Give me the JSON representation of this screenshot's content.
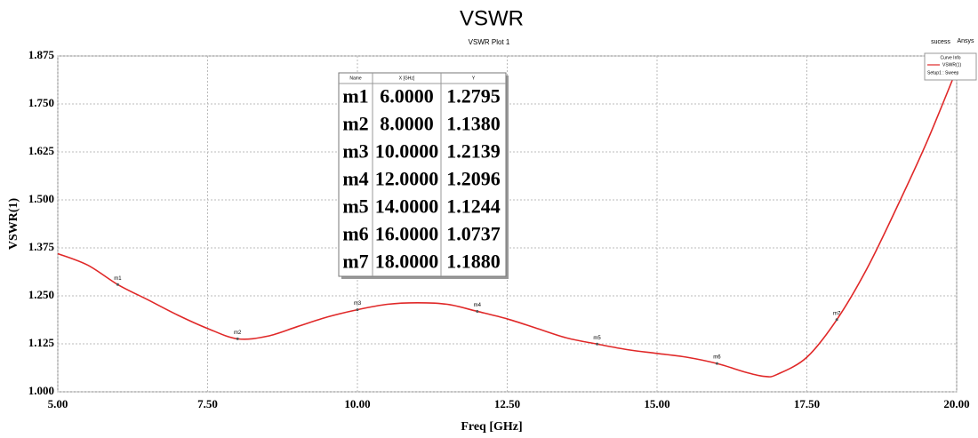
{
  "chart_data": {
    "type": "line",
    "title": "VSWR",
    "subtitle": "VSWR Plot 1",
    "corner_labels": [
      "sucess",
      "Ansys"
    ],
    "x_label": "Freq [GHz]",
    "y_label": "VSWR(1)",
    "x": [
      5.0,
      5.5,
      6.0,
      6.5,
      7.0,
      7.5,
      8.0,
      8.5,
      9.0,
      9.5,
      10.0,
      10.5,
      11.0,
      11.5,
      12.0,
      12.5,
      13.0,
      13.5,
      14.0,
      14.5,
      15.0,
      15.5,
      16.0,
      16.5,
      16.8,
      17.0,
      17.5,
      18.0,
      18.5,
      19.0,
      19.5,
      20.0
    ],
    "series": [
      {
        "name": "VSWR(1)",
        "color": "#e02828",
        "values": [
          1.36,
          1.33,
          1.2795,
          1.24,
          1.2,
          1.165,
          1.138,
          1.145,
          1.17,
          1.195,
          1.2139,
          1.228,
          1.232,
          1.228,
          1.2096,
          1.19,
          1.165,
          1.14,
          1.1244,
          1.11,
          1.1,
          1.09,
          1.0737,
          1.05,
          1.04,
          1.045,
          1.09,
          1.188,
          1.32,
          1.48,
          1.65,
          1.84
        ]
      }
    ],
    "legend_title": "Curve Info",
    "legend_note": "Setup1 : Sweep",
    "xlim": [
      5.0,
      20.0
    ],
    "xticks": [
      {
        "value": 5,
        "label": "5.00"
      },
      {
        "value": 7.5,
        "label": "7.50"
      },
      {
        "value": 10,
        "label": "10.00"
      },
      {
        "value": 12.5,
        "label": "12.50"
      },
      {
        "value": 15,
        "label": "15.00"
      },
      {
        "value": 17.5,
        "label": "17.50"
      },
      {
        "value": 20,
        "label": "20.00"
      }
    ],
    "ylim": [
      1.0,
      1.875
    ],
    "yticks": [
      {
        "value": 1,
        "label": "1.000"
      },
      {
        "value": 1.125,
        "label": "1.125"
      },
      {
        "value": 1.25,
        "label": "1.250"
      },
      {
        "value": 1.375,
        "label": "1.375"
      },
      {
        "value": 1.5,
        "label": "1.500"
      },
      {
        "value": 1.625,
        "label": "1.625"
      },
      {
        "value": 1.75,
        "label": "1.750"
      },
      {
        "value": 1.875,
        "label": "1.875"
      }
    ],
    "grid": true,
    "marker_table_header": [
      "Name",
      "X [GHz]",
      "Y"
    ],
    "markers": [
      {
        "name": "m1",
        "x": {
          "value": 6,
          "label": "6.0000"
        },
        "y": {
          "value": 1.2795,
          "label": "1.2795"
        }
      },
      {
        "name": "m2",
        "x": {
          "value": 8,
          "label": "8.0000"
        },
        "y": {
          "value": 1.138,
          "label": "1.1380"
        }
      },
      {
        "name": "m3",
        "x": {
          "value": 10,
          "label": "10.0000"
        },
        "y": {
          "value": 1.2139,
          "label": "1.2139"
        }
      },
      {
        "name": "m4",
        "x": {
          "value": 12,
          "label": "12.0000"
        },
        "y": {
          "value": 1.2096,
          "label": "1.2096"
        }
      },
      {
        "name": "m5",
        "x": {
          "value": 14,
          "label": "14.0000"
        },
        "y": {
          "value": 1.1244,
          "label": "1.1244"
        }
      },
      {
        "name": "m6",
        "x": {
          "value": 16,
          "label": "16.0000"
        },
        "y": {
          "value": 1.0737,
          "label": "1.0737"
        }
      },
      {
        "name": "m7",
        "x": {
          "value": 18,
          "label": "18.0000"
        },
        "y": {
          "value": 1.188,
          "label": "1.1880"
        }
      }
    ]
  }
}
